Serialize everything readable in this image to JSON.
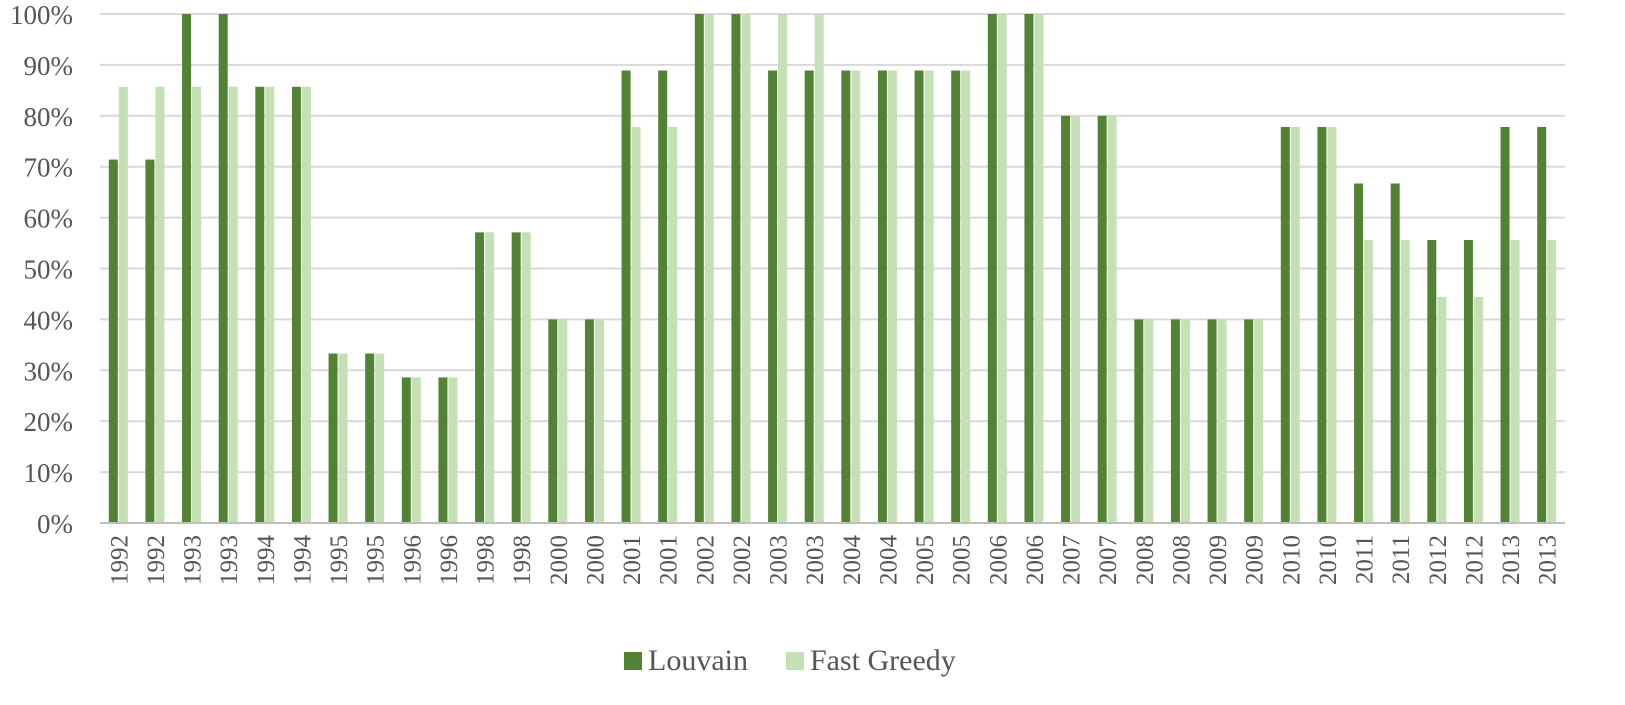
{
  "chart_data": {
    "type": "bar",
    "title": "",
    "xlabel": "",
    "ylabel": "",
    "ylim": [
      0,
      100
    ],
    "y_ticks": [
      "0%",
      "10%",
      "20%",
      "30%",
      "40%",
      "50%",
      "60%",
      "70%",
      "80%",
      "90%",
      "100%"
    ],
    "grid": true,
    "legend_position": "bottom",
    "categories": [
      "1992",
      "1992",
      "1993",
      "1993",
      "1994",
      "1994",
      "1995",
      "1995",
      "1996",
      "1996",
      "1998",
      "1998",
      "2000",
      "2000",
      "2001",
      "2001",
      "2002",
      "2002",
      "2003",
      "2003",
      "2004",
      "2004",
      "2005",
      "2005",
      "2006",
      "2006",
      "2007",
      "2007",
      "2008",
      "2008",
      "2009",
      "2009",
      "2010",
      "2010",
      "2011",
      "2011",
      "2012",
      "2012",
      "2013",
      "2013"
    ],
    "series": [
      {
        "name": "Louvain",
        "color": "#548235",
        "values": [
          71.4,
          71.4,
          100,
          100,
          85.7,
          85.7,
          33.3,
          33.3,
          28.6,
          28.6,
          57.1,
          57.1,
          40,
          40,
          88.9,
          88.9,
          100,
          100,
          88.9,
          88.9,
          88.9,
          88.9,
          88.9,
          88.9,
          100,
          100,
          80,
          80,
          40,
          40,
          40,
          40,
          77.8,
          77.8,
          66.7,
          66.7,
          55.6,
          55.6,
          77.8,
          77.8
        ]
      },
      {
        "name": "Fast Greedy",
        "color": "#c5e0b4",
        "values": [
          85.7,
          85.7,
          85.7,
          85.7,
          85.7,
          85.7,
          33.3,
          33.3,
          28.6,
          28.6,
          57.1,
          57.1,
          40,
          40,
          77.8,
          77.8,
          100,
          100,
          100,
          100,
          88.9,
          88.9,
          88.9,
          88.9,
          100,
          100,
          80,
          80,
          40,
          40,
          40,
          40,
          77.8,
          77.8,
          55.6,
          55.6,
          44.4,
          44.4,
          55.6,
          55.6
        ]
      }
    ]
  }
}
